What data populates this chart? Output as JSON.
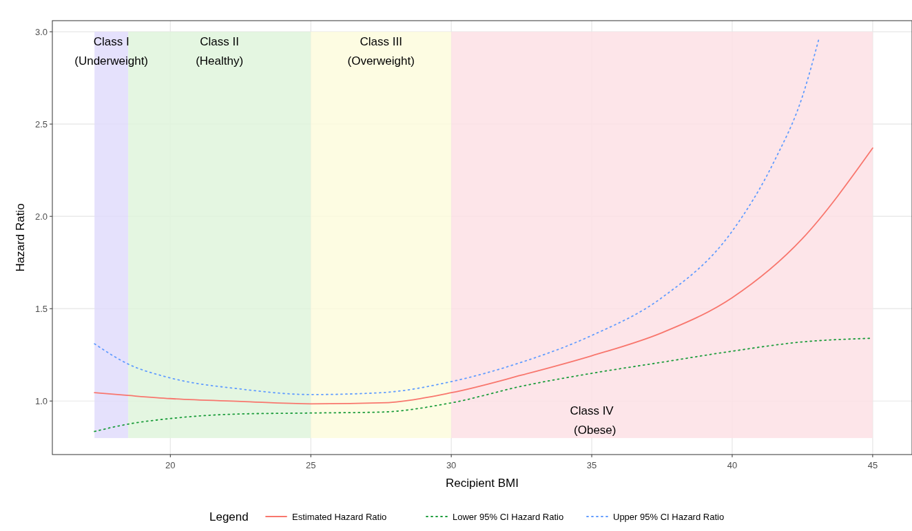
{
  "chart_data": {
    "type": "line",
    "xlabel": "Recipient BMI",
    "ylabel": "Hazard Ratio",
    "legend_title": "Legend",
    "legend": "bottom",
    "grid": true,
    "xlim": [
      15.8,
      46.4
    ],
    "xticks": [
      20,
      25,
      30,
      35,
      40,
      45
    ],
    "ylim": [
      0.71,
      3.06
    ],
    "yticks": [
      {
        "value": 1,
        "label": "1.0"
      },
      {
        "value": 1.5,
        "label": "1.5"
      },
      {
        "value": 2,
        "label": "2.0"
      },
      {
        "value": 2.5,
        "label": "2.5"
      },
      {
        "value": 3,
        "label": "3.0"
      }
    ],
    "bands": [
      {
        "axis": "x",
        "from": 17.3,
        "to": 18.5,
        "color": "#e0dcfc",
        "label": "Class I\n(Underweight)"
      },
      {
        "axis": "x",
        "from": 18.5,
        "to": 25,
        "color": "#dff5dc",
        "label": "Class II\n(Healthy)"
      },
      {
        "axis": "x",
        "from": 25,
        "to": 30,
        "color": "#fdfcdd",
        "label": "Class III\n(Overweight)"
      },
      {
        "axis": "x",
        "from": 30,
        "to": 45,
        "color": "#fde1e5",
        "label": "Class IV\n  (Obese)"
      }
    ],
    "series": [
      {
        "name": "Estimated Hazard Ratio",
        "color": "#f8766d",
        "line_style": "solid",
        "x": [
          17.3,
          18.5,
          20,
          22.5,
          25,
          27.5,
          30,
          32.5,
          35,
          37.5,
          40,
          42.5,
          45
        ],
        "values": [
          1.045,
          1.03,
          1.013,
          0.998,
          0.985,
          0.99,
          1.045,
          1.14,
          1.245,
          1.37,
          1.56,
          1.88,
          2.37
        ]
      },
      {
        "name": "Lower 95% CI Hazard Ratio",
        "color": "#1a9c3a",
        "line_style": "dotted",
        "x": [
          17.3,
          18.5,
          20,
          22.5,
          25,
          27.5,
          30,
          32.5,
          35,
          37.5,
          40,
          42.5,
          45
        ],
        "values": [
          0.835,
          0.875,
          0.905,
          0.93,
          0.935,
          0.94,
          0.99,
          1.08,
          1.15,
          1.21,
          1.27,
          1.32,
          1.34
        ]
      },
      {
        "name": "Upper 95% CI Hazard Ratio",
        "color": "#619cff",
        "line_style": "dotted",
        "x": [
          17.3,
          18.5,
          20,
          22.5,
          25,
          27.5,
          30,
          32.5,
          35,
          37.5,
          40,
          41.5,
          42.5,
          43.1
        ],
        "values": [
          1.31,
          1.2,
          1.125,
          1.065,
          1.035,
          1.045,
          1.105,
          1.21,
          1.355,
          1.56,
          1.92,
          2.3,
          2.65,
          2.97
        ]
      }
    ]
  }
}
